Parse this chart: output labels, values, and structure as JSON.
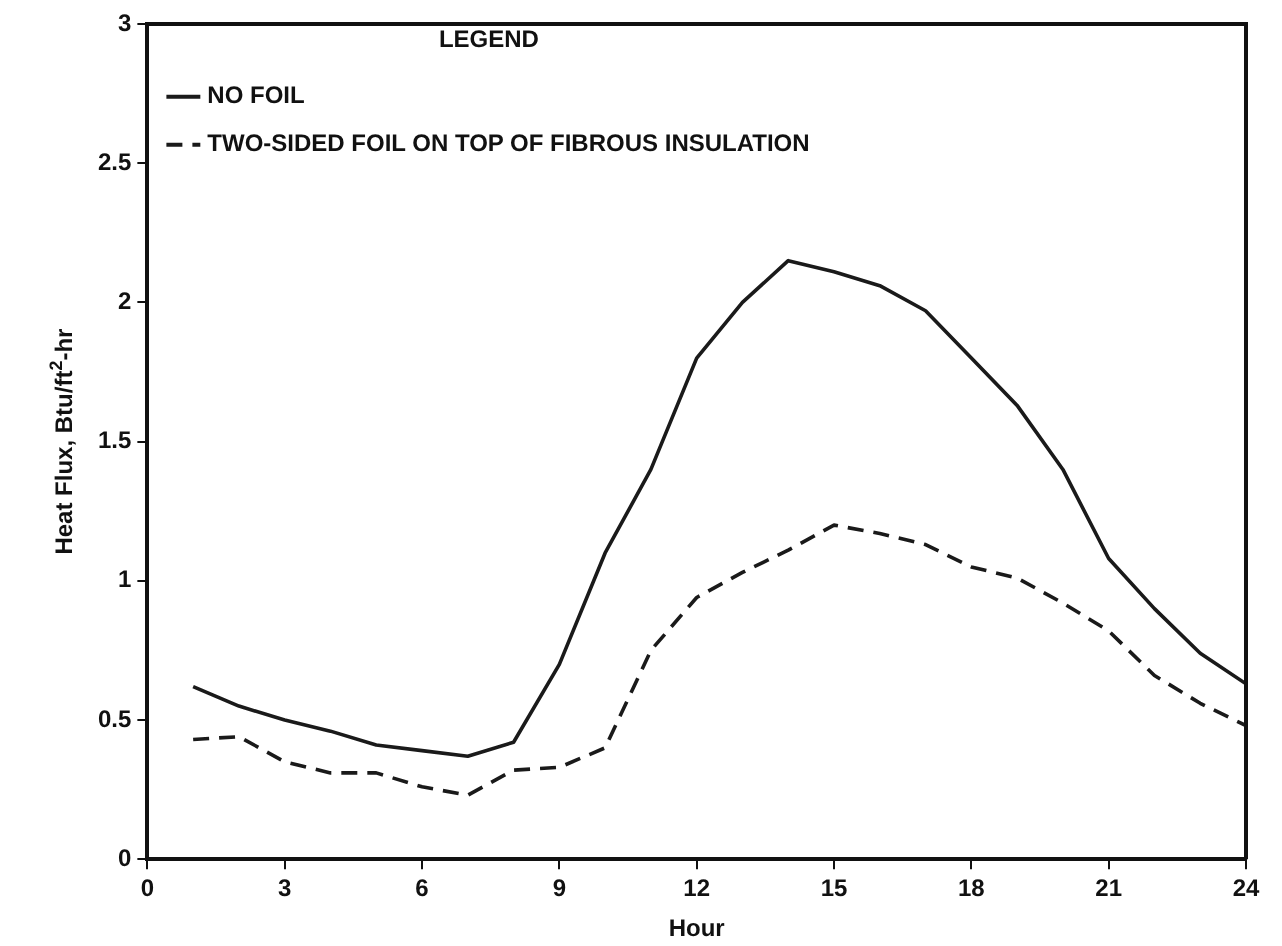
{
  "chart_data": {
    "type": "line",
    "xlabel": "Hour",
    "ylabel": "Heat Flux, Btu/ft$^{2}$-hr",
    "legend_title": "LEGEND",
    "legend": "top left",
    "grid": false,
    "marker": "none",
    "x": [
      1,
      2,
      3,
      4,
      5,
      6,
      7,
      8,
      9,
      10,
      11,
      12,
      13,
      14,
      15,
      16,
      17,
      18,
      19,
      20,
      21,
      22,
      23,
      24
    ],
    "xlim": [
      0,
      24
    ],
    "xticks": [
      0,
      3,
      6,
      9,
      12,
      15,
      18,
      21,
      24
    ],
    "ylim": [
      0,
      3
    ],
    "yticks": [
      0,
      0.5,
      1,
      1.5,
      2,
      2.5,
      3
    ],
    "series": [
      {
        "name": "NO FOIL",
        "color": "#1a1a1a",
        "line_style": "solid",
        "values": [
          0.62,
          0.55,
          0.5,
          0.46,
          0.41,
          0.39,
          0.37,
          0.42,
          0.7,
          1.1,
          1.4,
          1.8,
          2.0,
          2.15,
          2.11,
          2.06,
          1.97,
          1.8,
          1.63,
          1.4,
          1.08,
          0.9,
          0.74,
          0.63
        ]
      },
      {
        "name": "TWO-SIDED FOIL ON TOP OF FIBROUS INSULATION",
        "color": "#1a1a1a",
        "line_style": "dashed",
        "values": [
          0.43,
          0.44,
          0.35,
          0.31,
          0.31,
          0.26,
          0.23,
          0.32,
          0.33,
          0.4,
          0.75,
          0.94,
          1.03,
          1.11,
          1.2,
          1.17,
          1.13,
          1.05,
          1.01,
          0.92,
          0.82,
          0.66,
          0.56,
          0.48
        ]
      }
    ]
  }
}
